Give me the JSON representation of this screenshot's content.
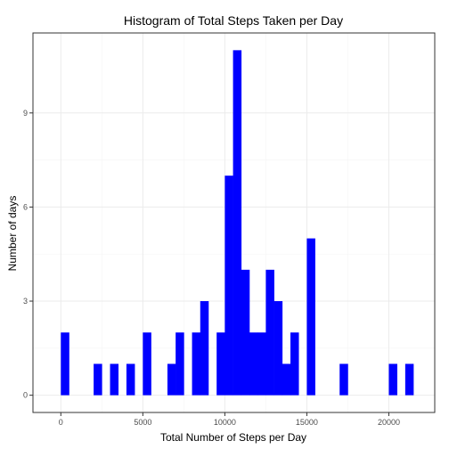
{
  "chart_data": {
    "type": "bar",
    "title": "Histogram of Total Steps Taken per Day",
    "xlabel": "Total Number of Steps per Day",
    "ylabel": "Number of days",
    "bin_width": 500,
    "xlim": [
      -1700,
      22800
    ],
    "ylim": [
      -0.55,
      11.55
    ],
    "x_ticks": [
      "0",
      "5000",
      "10000",
      "15000",
      "20000"
    ],
    "x_tick_values": [
      0,
      5000,
      10000,
      15000,
      20000
    ],
    "y_ticks": [
      "0",
      "3",
      "6",
      "9"
    ],
    "y_tick_values": [
      0,
      3,
      6,
      9
    ],
    "grid": true,
    "bar_color": "#0000ff",
    "border_color": "#333333",
    "grid_color": "#ebebeb",
    "bins": [
      {
        "x": 250,
        "count": 2
      },
      {
        "x": 2250,
        "count": 1
      },
      {
        "x": 3250,
        "count": 1
      },
      {
        "x": 4250,
        "count": 1
      },
      {
        "x": 5250,
        "count": 2
      },
      {
        "x": 6750,
        "count": 1
      },
      {
        "x": 7250,
        "count": 2
      },
      {
        "x": 8250,
        "count": 2
      },
      {
        "x": 8750,
        "count": 3
      },
      {
        "x": 9750,
        "count": 2
      },
      {
        "x": 10250,
        "count": 7
      },
      {
        "x": 10750,
        "count": 11
      },
      {
        "x": 11250,
        "count": 4
      },
      {
        "x": 11750,
        "count": 2
      },
      {
        "x": 12250,
        "count": 2
      },
      {
        "x": 12750,
        "count": 4
      },
      {
        "x": 13250,
        "count": 3
      },
      {
        "x": 13750,
        "count": 1
      },
      {
        "x": 14250,
        "count": 2
      },
      {
        "x": 15250,
        "count": 5
      },
      {
        "x": 17250,
        "count": 1
      },
      {
        "x": 20250,
        "count": 1
      },
      {
        "x": 21250,
        "count": 1
      }
    ]
  }
}
